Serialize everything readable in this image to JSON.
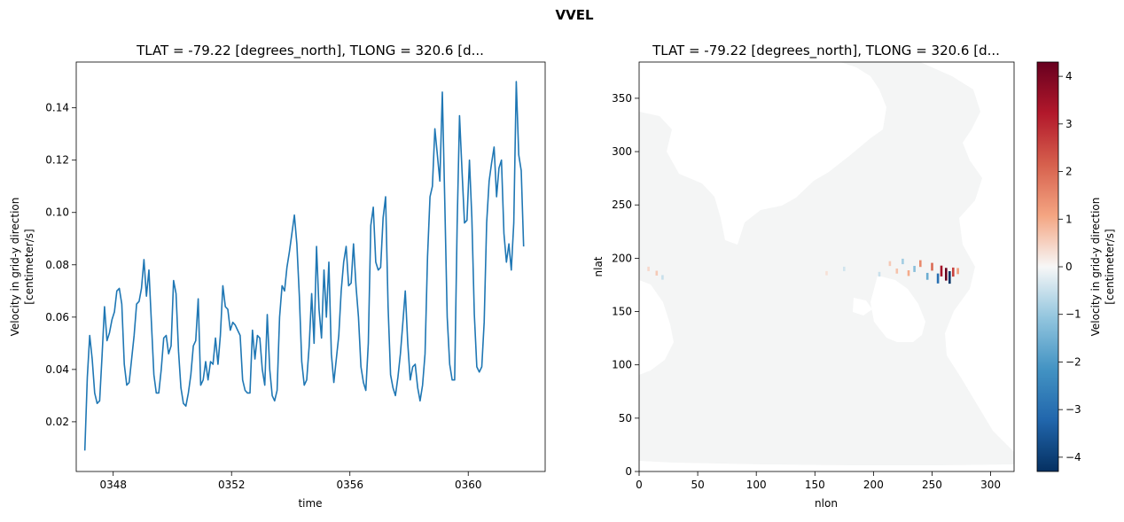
{
  "figure": {
    "suptitle": "VVEL"
  },
  "chart_data": [
    {
      "type": "line",
      "title": "TLAT = -79.22 [degrees_north], TLONG = 320.6 [d...",
      "xlabel": "time",
      "ylabel_lines": [
        "Velocity in grid-y direction",
        "[centimeter/s]"
      ],
      "x_ticks": [
        {
          "value": 348,
          "label": "0348"
        },
        {
          "value": 352,
          "label": "0352"
        },
        {
          "value": 356,
          "label": "0356"
        },
        {
          "value": 360,
          "label": "0360"
        }
      ],
      "y_ticks": [
        0.02,
        0.04,
        0.06,
        0.08,
        0.1,
        0.12,
        0.14
      ],
      "y_tick_labels": [
        "0.02",
        "0.04",
        "0.06",
        "0.08",
        "0.10",
        "0.12",
        "0.14"
      ],
      "xlim": [
        346.75,
        362.6
      ],
      "ylim": [
        0.001,
        0.1575
      ],
      "line_color": "#1f77b4",
      "series": [
        {
          "x_start": 347.04,
          "x_step": 0.0833333,
          "values": [
            0.009,
            0.037,
            0.053,
            0.044,
            0.031,
            0.027,
            0.028,
            0.045,
            0.064,
            0.051,
            0.054,
            0.059,
            0.062,
            0.07,
            0.071,
            0.065,
            0.042,
            0.034,
            0.035,
            0.044,
            0.053,
            0.065,
            0.066,
            0.071,
            0.082,
            0.068,
            0.078,
            0.058,
            0.038,
            0.031,
            0.031,
            0.04,
            0.052,
            0.053,
            0.046,
            0.049,
            0.074,
            0.069,
            0.047,
            0.033,
            0.027,
            0.026,
            0.031,
            0.038,
            0.049,
            0.051,
            0.067,
            0.034,
            0.036,
            0.043,
            0.036,
            0.043,
            0.042,
            0.052,
            0.042,
            0.053,
            0.072,
            0.064,
            0.063,
            0.055,
            0.058,
            0.057,
            0.055,
            0.053,
            0.036,
            0.032,
            0.031,
            0.031,
            0.055,
            0.044,
            0.053,
            0.052,
            0.04,
            0.034,
            0.061,
            0.04,
            0.03,
            0.028,
            0.032,
            0.06,
            0.072,
            0.07,
            0.079,
            0.085,
            0.092,
            0.099,
            0.088,
            0.068,
            0.043,
            0.034,
            0.036,
            0.049,
            0.069,
            0.05,
            0.087,
            0.063,
            0.052,
            0.078,
            0.06,
            0.081,
            0.046,
            0.035,
            0.044,
            0.053,
            0.07,
            0.081,
            0.087,
            0.072,
            0.073,
            0.088,
            0.072,
            0.06,
            0.041,
            0.035,
            0.032,
            0.05,
            0.095,
            0.102,
            0.081,
            0.078,
            0.079,
            0.098,
            0.106,
            0.064,
            0.038,
            0.033,
            0.03,
            0.037,
            0.046,
            0.058,
            0.07,
            0.05,
            0.036,
            0.041,
            0.042,
            0.033,
            0.028,
            0.034,
            0.046,
            0.083,
            0.106,
            0.11,
            0.132,
            0.122,
            0.112,
            0.146,
            0.105,
            0.06,
            0.042,
            0.036,
            0.036,
            0.095,
            0.137,
            0.116,
            0.096,
            0.097,
            0.12,
            0.098,
            0.061,
            0.041,
            0.039,
            0.041,
            0.058,
            0.096,
            0.112,
            0.119,
            0.125,
            0.106,
            0.117,
            0.12,
            0.092,
            0.081,
            0.088,
            0.078,
            0.096,
            0.15,
            0.122,
            0.116,
            0.087
          ]
        }
      ]
    },
    {
      "type": "heatmap",
      "title": "TLAT = -79.22 [degrees_north], TLONG = 320.6 [d...",
      "xlabel": "nlon",
      "ylabel": "nlat",
      "x_ticks": [
        0,
        50,
        100,
        150,
        200,
        250,
        300
      ],
      "x_tick_labels": [
        "0",
        "50",
        "100",
        "150",
        "200",
        "250",
        "300"
      ],
      "y_ticks": [
        0,
        50,
        100,
        150,
        200,
        250,
        300,
        350
      ],
      "y_tick_labels": [
        "0",
        "50",
        "100",
        "150",
        "200",
        "250",
        "300",
        "350"
      ],
      "xlim": [
        0,
        320
      ],
      "ylim": [
        0,
        384
      ],
      "colormap": "RdBu_r",
      "colorbar": {
        "label_lines": [
          "Velocity in grid-y direction",
          "[centimeter/s]"
        ],
        "range": [
          -4.3,
          4.3
        ],
        "ticks": [
          -4,
          -3,
          -2,
          -1,
          0,
          1,
          2,
          3,
          4
        ],
        "tick_labels": [
          "−4",
          "−3",
          "−2",
          "−1",
          "0",
          "1",
          "2",
          "3",
          "4"
        ]
      },
      "ocean_color": "#f4f5f5",
      "features": [
        {
          "nlon": 262,
          "nlat": 185,
          "value": 4.3
        },
        {
          "nlon": 265,
          "nlat": 182,
          "value": -4.2
        },
        {
          "nlon": 258,
          "nlat": 188,
          "value": 3.4
        },
        {
          "nlon": 268,
          "nlat": 187,
          "value": 2.6
        },
        {
          "nlon": 255,
          "nlat": 181,
          "value": -3.0
        },
        {
          "nlon": 250,
          "nlat": 192,
          "value": 2.0
        },
        {
          "nlon": 246,
          "nlat": 183,
          "value": -1.6
        },
        {
          "nlon": 240,
          "nlat": 195,
          "value": 1.5
        },
        {
          "nlon": 235,
          "nlat": 190,
          "value": -1.2
        },
        {
          "nlon": 230,
          "nlat": 186,
          "value": 1.0
        },
        {
          "nlon": 225,
          "nlat": 197,
          "value": -0.9
        },
        {
          "nlon": 220,
          "nlat": 188,
          "value": 0.7
        },
        {
          "nlon": 272,
          "nlat": 188,
          "value": 1.2
        },
        {
          "nlon": 214,
          "nlat": 195,
          "value": 0.6
        },
        {
          "nlon": 205,
          "nlat": 185,
          "value": -0.5
        },
        {
          "nlon": 175,
          "nlat": 190,
          "value": -0.4
        },
        {
          "nlon": 160,
          "nlat": 186,
          "value": 0.3
        },
        {
          "nlon": 15,
          "nlat": 186,
          "value": 0.6
        },
        {
          "nlon": 20,
          "nlat": 182,
          "value": -0.5
        },
        {
          "nlon": 8,
          "nlat": 190,
          "value": 0.4
        }
      ]
    }
  ]
}
